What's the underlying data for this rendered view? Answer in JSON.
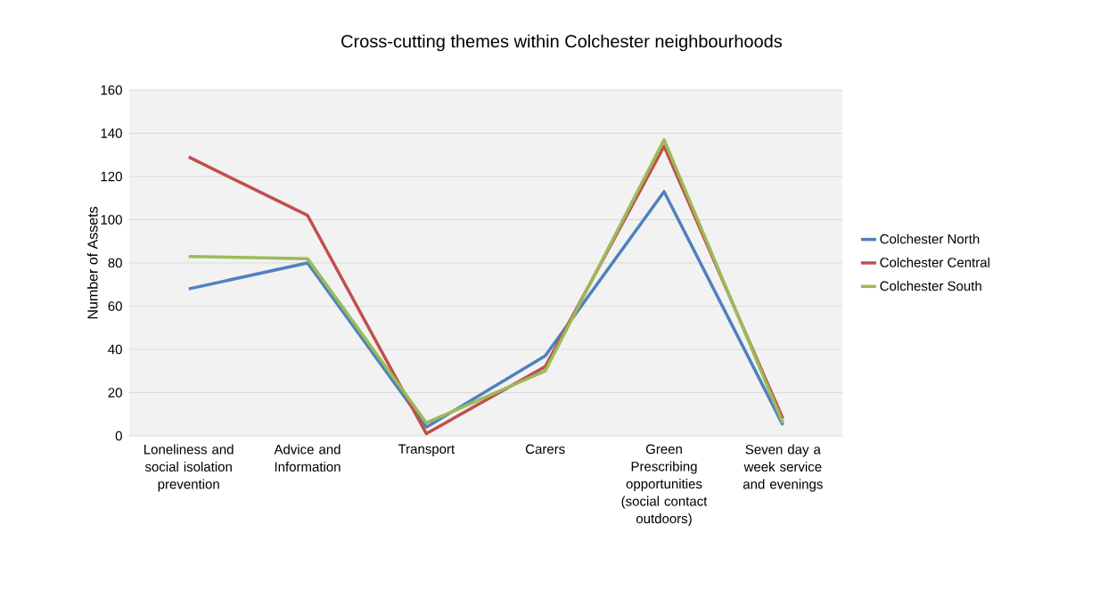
{
  "chart_data": {
    "type": "line",
    "title": "Cross-cutting themes within Colchester neighbourhoods",
    "ylabel": "Number of Assets",
    "categories": [
      "Loneliness and social isolation prevention",
      "Advice and Information",
      "Transport",
      "Carers",
      "Green Prescribing opportunities (social contact outdoors)",
      "Seven day a week service and evenings"
    ],
    "series": [
      {
        "name": "Colchester North",
        "color": "#4f81bd",
        "values": [
          68,
          80,
          4,
          37,
          113,
          5
        ]
      },
      {
        "name": "Colchester Central",
        "color": "#c0504d",
        "values": [
          129,
          102,
          1,
          32,
          134,
          8
        ]
      },
      {
        "name": "Colchester South",
        "color": "#9bbb59",
        "values": [
          83,
          82,
          6,
          30,
          137,
          6
        ]
      }
    ],
    "ylim": [
      0,
      160
    ],
    "yticks": [
      0,
      20,
      40,
      60,
      80,
      100,
      120,
      140,
      160
    ],
    "grid": "y",
    "legend": "right",
    "marker": "none",
    "line_style": "solid"
  }
}
